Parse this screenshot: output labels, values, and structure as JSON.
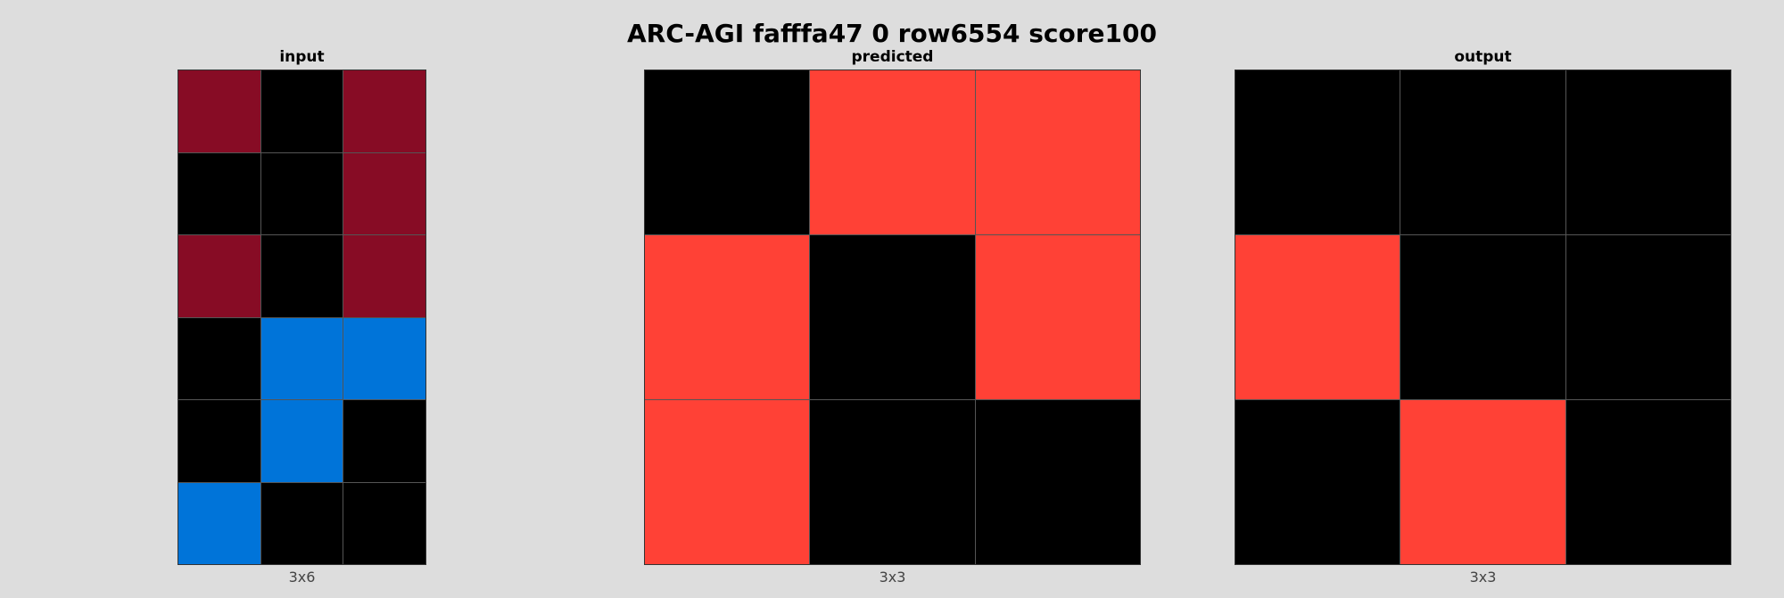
{
  "title": "ARC-AGI fafffa47 0 row6554 score100",
  "palette": {
    "0": "#000000",
    "1": "#0074D9",
    "2": "#FF4136",
    "9": "#870C25"
  },
  "panels": [
    {
      "label": "input",
      "size_label": "3x6",
      "rows": [
        [
          9,
          0,
          9
        ],
        [
          0,
          0,
          9
        ],
        [
          9,
          0,
          9
        ],
        [
          0,
          1,
          1
        ],
        [
          0,
          1,
          0
        ],
        [
          1,
          0,
          0
        ]
      ]
    },
    {
      "label": "predicted",
      "size_label": "3x3",
      "rows": [
        [
          0,
          2,
          2
        ],
        [
          2,
          0,
          2
        ],
        [
          2,
          0,
          0
        ]
      ]
    },
    {
      "label": "output",
      "size_label": "3x3",
      "rows": [
        [
          0,
          0,
          0
        ],
        [
          2,
          0,
          0
        ],
        [
          0,
          2,
          0
        ]
      ]
    }
  ]
}
